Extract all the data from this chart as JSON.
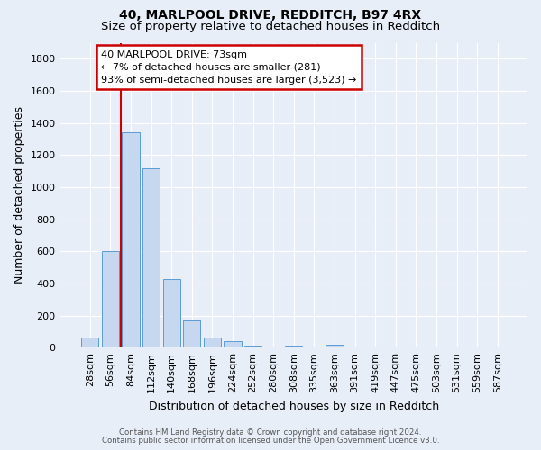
{
  "title_line1": "40, MARLPOOL DRIVE, REDDITCH, B97 4RX",
  "title_line2": "Size of property relative to detached houses in Redditch",
  "xlabel": "Distribution of detached houses by size in Redditch",
  "ylabel": "Number of detached properties",
  "footnote1": "Contains HM Land Registry data © Crown copyright and database right 2024.",
  "footnote2": "Contains public sector information licensed under the Open Government Licence v3.0.",
  "bar_labels": [
    "28sqm",
    "56sqm",
    "84sqm",
    "112sqm",
    "140sqm",
    "168sqm",
    "196sqm",
    "224sqm",
    "252sqm",
    "280sqm",
    "308sqm",
    "335sqm",
    "363sqm",
    "391sqm",
    "419sqm",
    "447sqm",
    "475sqm",
    "503sqm",
    "531sqm",
    "559sqm",
    "587sqm"
  ],
  "bar_values": [
    60,
    600,
    1340,
    1115,
    425,
    170,
    60,
    40,
    15,
    0,
    15,
    0,
    20,
    0,
    0,
    0,
    0,
    0,
    0,
    0,
    0
  ],
  "bar_color": "#c5d8f0",
  "bar_edge_color": "#5b9bd5",
  "red_line_x": 1.5,
  "annotation_text": "40 MARLPOOL DRIVE: 73sqm\n← 7% of detached houses are smaller (281)\n93% of semi-detached houses are larger (3,523) →",
  "annotation_box_color": "#ffffff",
  "annotation_box_edge": "#cc0000",
  "ylim": [
    0,
    1900
  ],
  "yticks": [
    0,
    200,
    400,
    600,
    800,
    1000,
    1200,
    1400,
    1600,
    1800
  ],
  "bg_color": "#e8eef8",
  "plot_bg_color": "#e8eef8",
  "grid_color": "#ffffff",
  "title_fontsize": 10,
  "subtitle_fontsize": 9.5,
  "axis_label_fontsize": 9,
  "tick_fontsize": 8
}
